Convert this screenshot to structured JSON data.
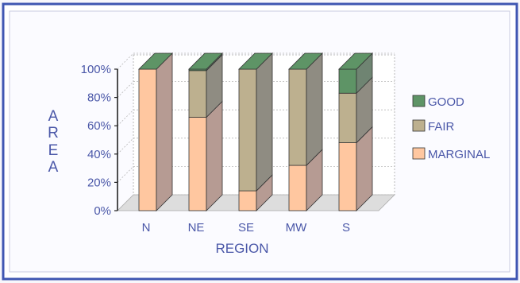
{
  "chart_data": {
    "type": "bar",
    "stacked": true,
    "three_d": true,
    "percent_stacked": true,
    "categories": [
      "N",
      "NE",
      "SE",
      "MW",
      "S"
    ],
    "series": [
      {
        "name": "MARGINAL",
        "values": [
          100,
          66,
          14,
          32,
          48
        ]
      },
      {
        "name": "FAIR",
        "values": [
          0,
          33,
          86,
          68,
          35
        ]
      },
      {
        "name": "GOOD",
        "values": [
          0,
          1,
          0,
          0,
          17
        ]
      }
    ],
    "ylim": [
      0,
      100
    ],
    "yticks": [
      "0%",
      "20%",
      "40%",
      "60%",
      "80%",
      "100%"
    ],
    "xlabel": "REGION",
    "ylabel": "AREA",
    "ylabel_letters": [
      "A",
      "R",
      "E",
      "A"
    ],
    "legend_order": [
      "GOOD",
      "FAIR",
      "MARGINAL"
    ],
    "legend_position": "right",
    "grid": true
  },
  "colors": {
    "MARGINAL": "#ffc7a0",
    "MARGINAL_side": "#b69b93",
    "FAIR": "#bdb08f",
    "FAIR_side": "#8f8c82",
    "GOOD": "#5e9466",
    "GOOD_side": "#6f8472",
    "text": "#4a57a8",
    "frame": "#3f56b2",
    "grid": "#b9b9b9",
    "floor": "#dddddd"
  }
}
